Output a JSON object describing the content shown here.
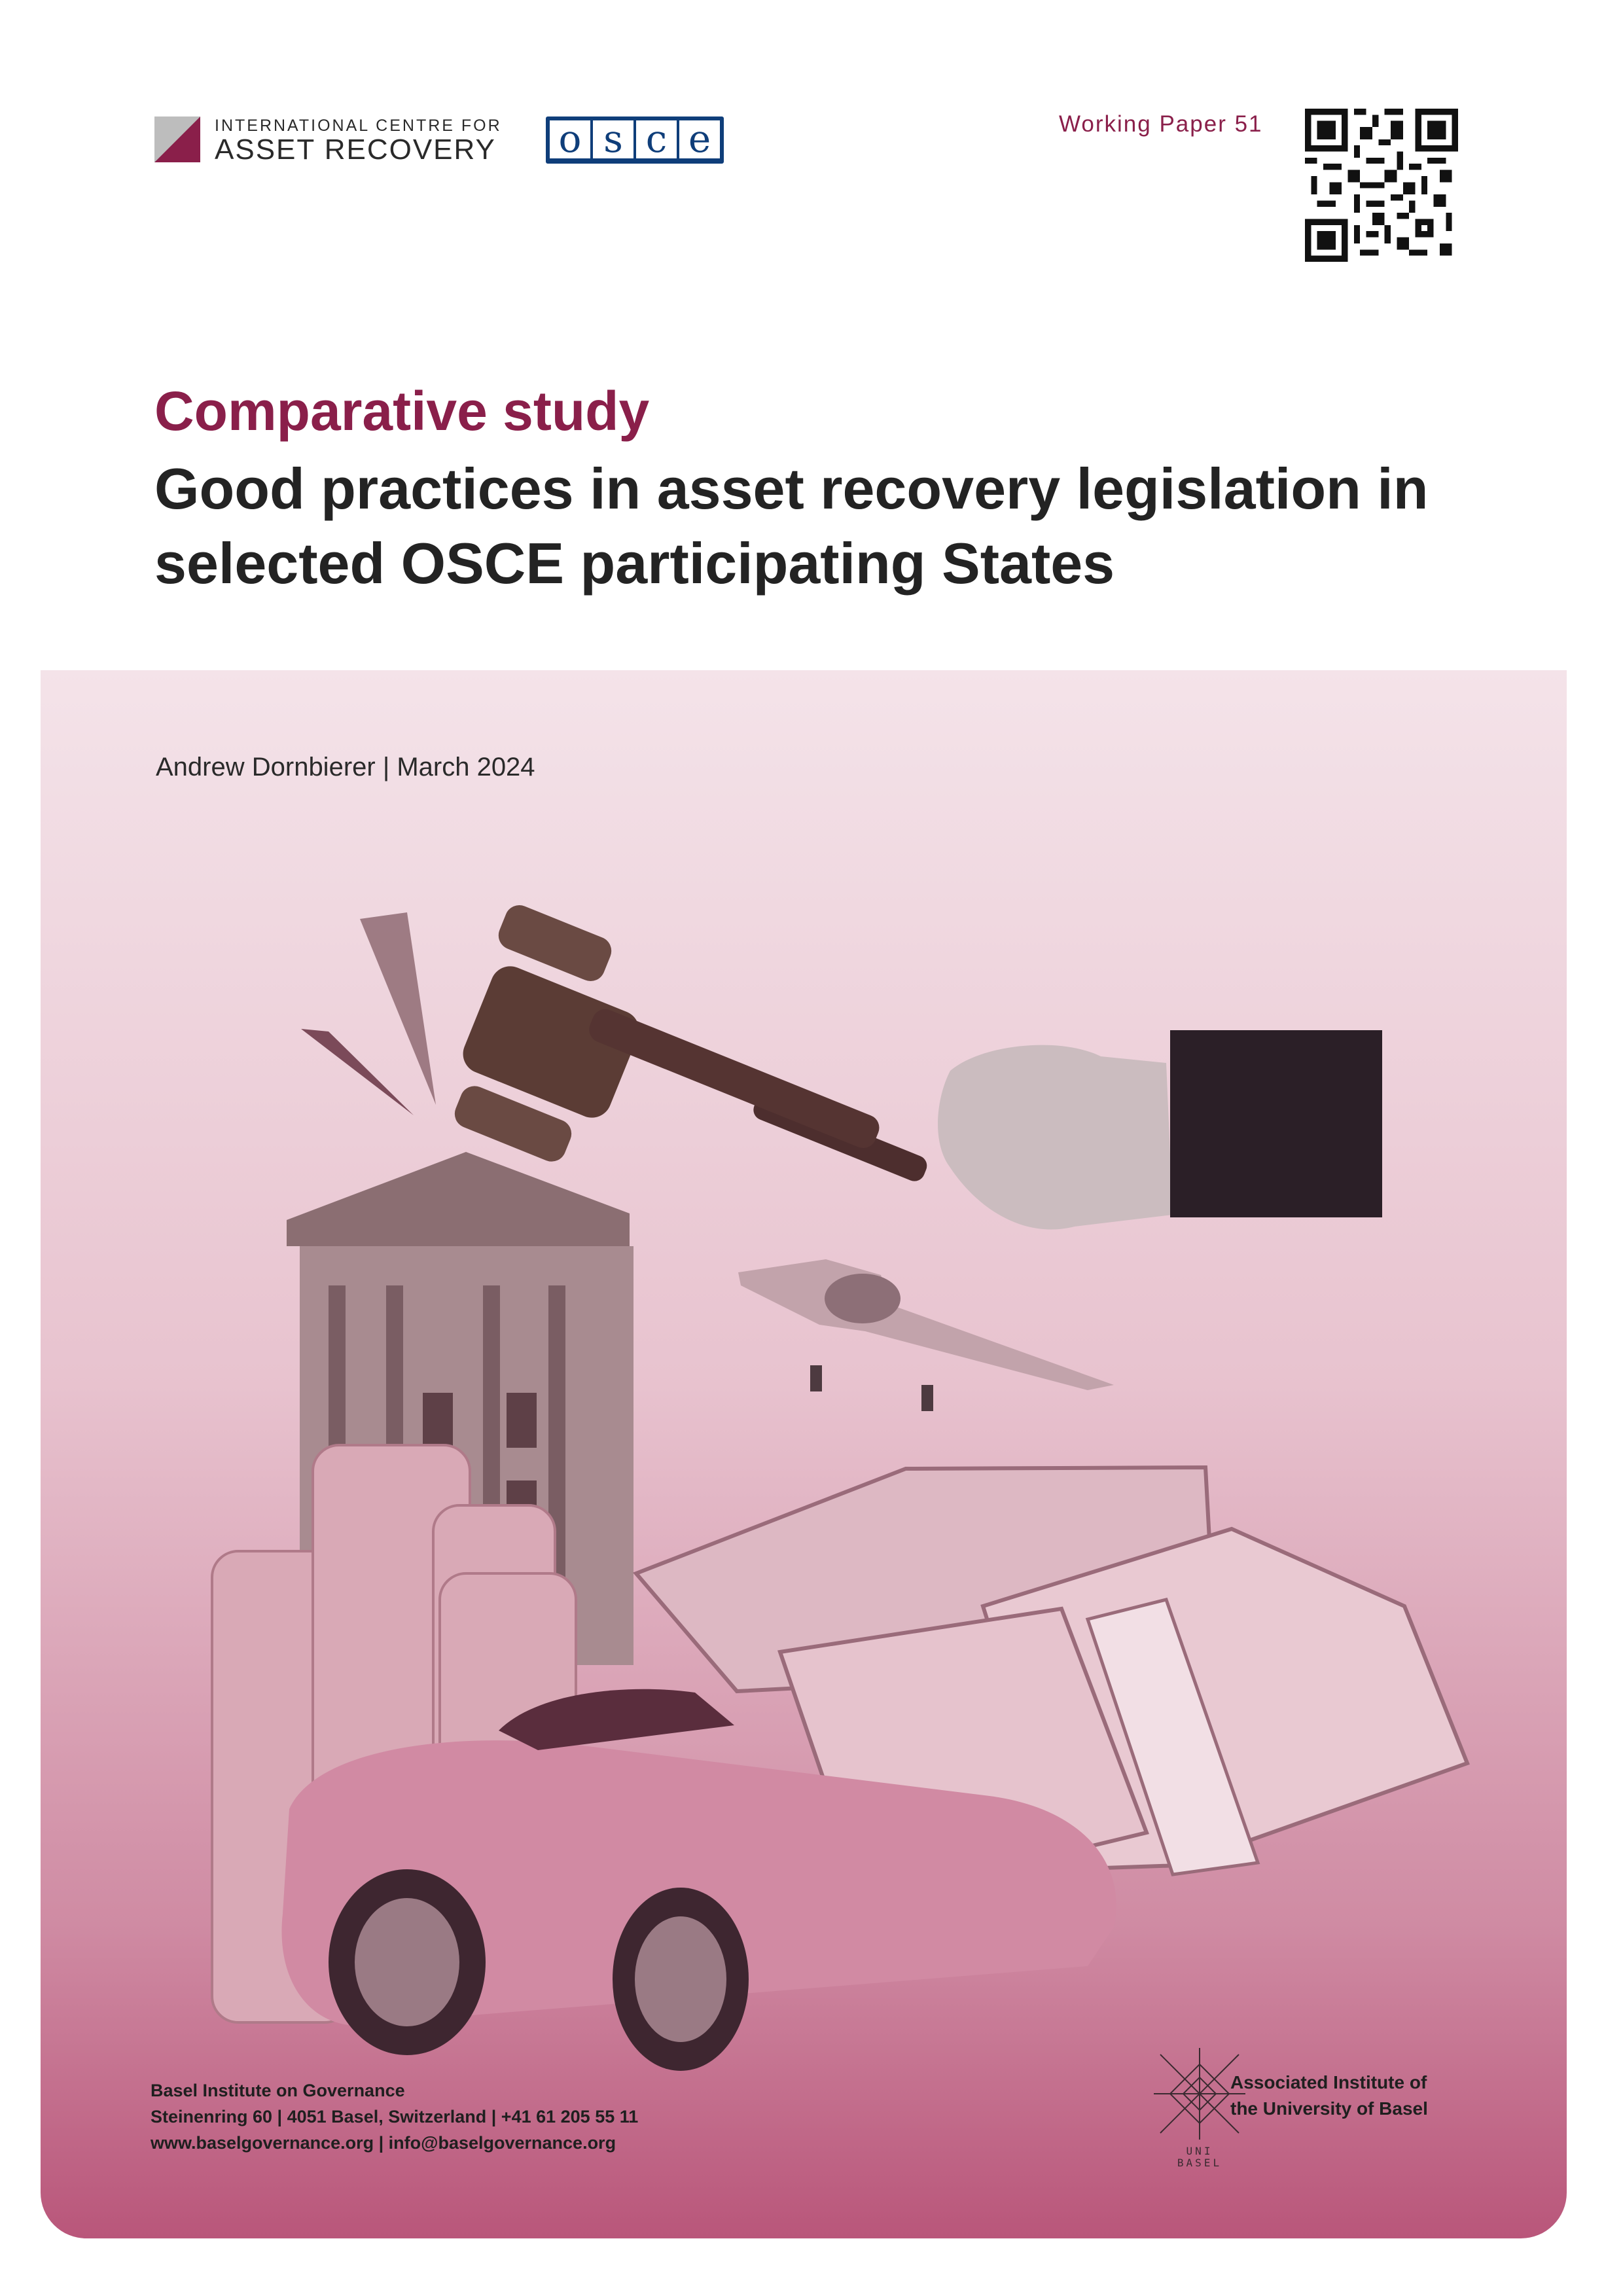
{
  "header": {
    "icar_logo": {
      "line1": "INTERNATIONAL CENTRE FOR",
      "line2": "ASSET RECOVERY"
    },
    "osce_logo": {
      "letters": [
        "o",
        "s",
        "c",
        "e"
      ]
    },
    "working_paper": "Working Paper 51"
  },
  "title": {
    "kicker": "Comparative study",
    "main": "Good practices in asset recovery legislation in selected OSCE participating States"
  },
  "cover": {
    "author_date": "Andrew Dornbierer | March 2024"
  },
  "footer": {
    "institute_name": "Basel Institute on Governance",
    "address": "Steinenring 60 | 4051 Basel, Switzerland | +41 61 205 55 11",
    "web_email": "www.baselgovernance.org | info@baselgovernance.org",
    "associated_line1": "Associated Institute of",
    "associated_line2": "the University of Basel",
    "unibasel_mark": [
      "UNI",
      "BASEL"
    ]
  },
  "colors": {
    "accent": "#8a1f4a",
    "osce_blue": "#0f3e7a",
    "panel_light": "#f4e3e9",
    "panel_dark": "#b9567a"
  },
  "icons": [
    "qr-code",
    "gavel",
    "building",
    "airplane",
    "coins",
    "banknotes",
    "car"
  ]
}
